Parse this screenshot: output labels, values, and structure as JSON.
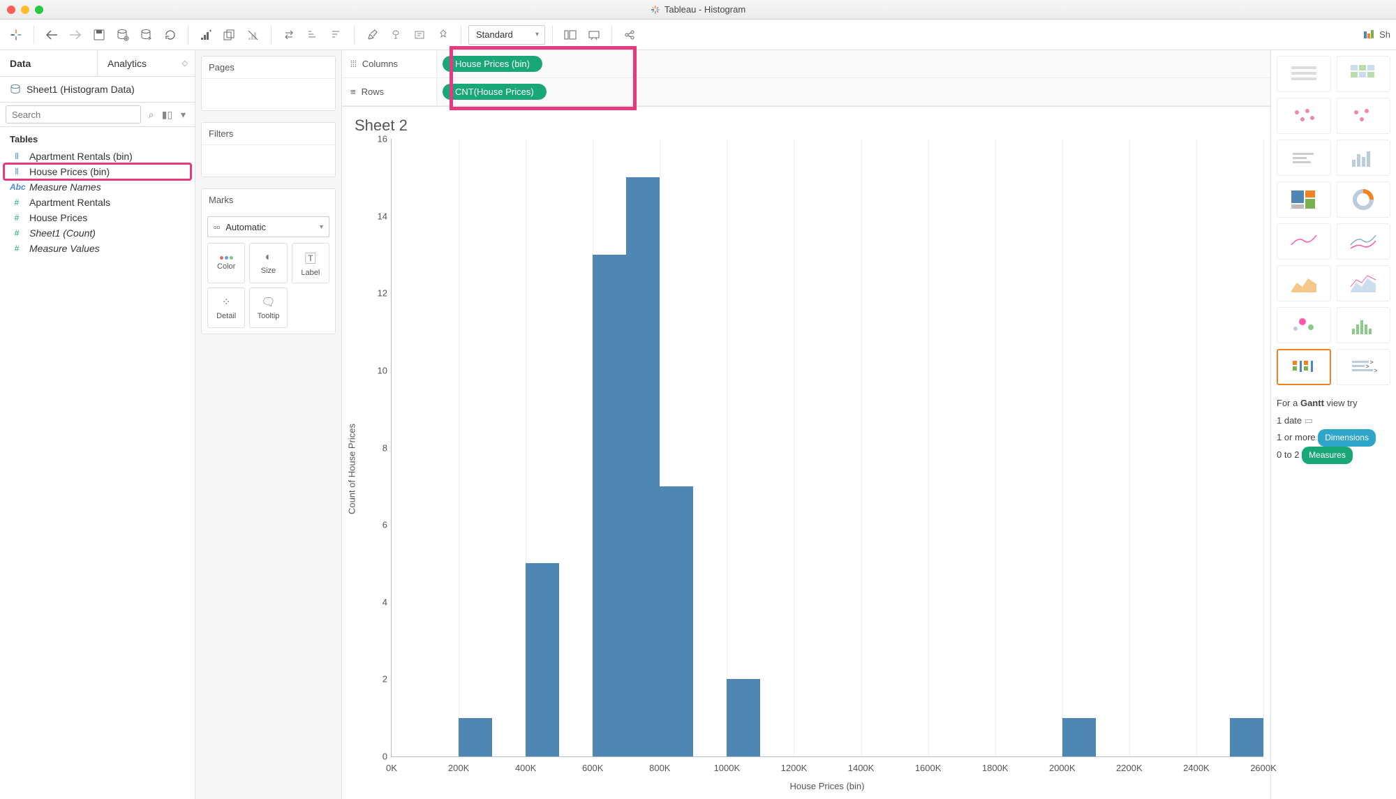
{
  "window": {
    "title": "Tableau - Histogram"
  },
  "toolbar": {
    "fit": "Standard",
    "show_me": "Sh"
  },
  "data_panel": {
    "tabs": {
      "data": "Data",
      "analytics": "Analytics"
    },
    "datasource": "Sheet1 (Histogram Data)",
    "search_placeholder": "Search",
    "tables_header": "Tables",
    "fields": [
      {
        "name": "Apartment Rentals (bin)",
        "type": "dim-bin",
        "italic": false,
        "highlighted": false
      },
      {
        "name": "House Prices (bin)",
        "type": "dim-bin",
        "italic": false,
        "highlighted": true
      },
      {
        "name": "Measure Names",
        "type": "abc",
        "italic": true,
        "highlighted": false
      },
      {
        "name": "Apartment Rentals",
        "type": "meas-num",
        "italic": false,
        "highlighted": false
      },
      {
        "name": "House Prices",
        "type": "meas-num",
        "italic": false,
        "highlighted": false
      },
      {
        "name": "Sheet1 (Count)",
        "type": "meas-num",
        "italic": true,
        "highlighted": false
      },
      {
        "name": "Measure Values",
        "type": "meas-num",
        "italic": true,
        "highlighted": false
      }
    ]
  },
  "shelves_mid": {
    "pages": "Pages",
    "filters": "Filters",
    "marks": "Marks",
    "marks_type": "Automatic",
    "cells": {
      "color": "Color",
      "size": "Size",
      "label": "Label",
      "detail": "Detail",
      "tooltip": "Tooltip"
    }
  },
  "shelves_top": {
    "columns_label": "Columns",
    "rows_label": "Rows",
    "columns_pill": "House Prices (bin)",
    "rows_pill": "CNT(House Prices)"
  },
  "sheet": {
    "title": "Sheet 2"
  },
  "chart": {
    "type": "histogram",
    "y_label": "Count of House Prices",
    "x_label": "House Prices (bin)",
    "bar_color": "#4f86b3",
    "grid_color": "#eeeeee",
    "axis_color": "#bbbbbb",
    "y_max": 16,
    "y_ticks": [
      0,
      2,
      4,
      6,
      8,
      10,
      12,
      14,
      16
    ],
    "x_ticks": [
      "0K",
      "200K",
      "400K",
      "600K",
      "800K",
      "1000K",
      "1200K",
      "1400K",
      "1600K",
      "1800K",
      "2000K",
      "2200K",
      "2400K",
      "2600K"
    ],
    "x_step_k": 200,
    "x_max_k": 2600,
    "bars": [
      {
        "bin_start_k": 200,
        "count": 1
      },
      {
        "bin_start_k": 400,
        "count": 5
      },
      {
        "bin_start_k": 600,
        "count": 13
      },
      {
        "bin_start_k": 700,
        "count": 15
      },
      {
        "bin_start_k": 800,
        "count": 7
      },
      {
        "bin_start_k": 1000,
        "count": 2
      },
      {
        "bin_start_k": 2000,
        "count": 1
      },
      {
        "bin_start_k": 2500,
        "count": 1
      }
    ],
    "bar_width_k": 100
  },
  "showme": {
    "hint_prefix": "For a ",
    "hint_bold": "Gantt",
    "hint_suffix": " view try",
    "line1": "1 date",
    "line2_prefix": "1 or more",
    "line2_pill": "Dimensions",
    "line3_prefix": "0 to 2",
    "line3_pill": "Measures"
  },
  "colors": {
    "pill_green": "#1aa778",
    "highlight_pink": "#e6397e",
    "dim_blue": "#4e8cc9"
  }
}
